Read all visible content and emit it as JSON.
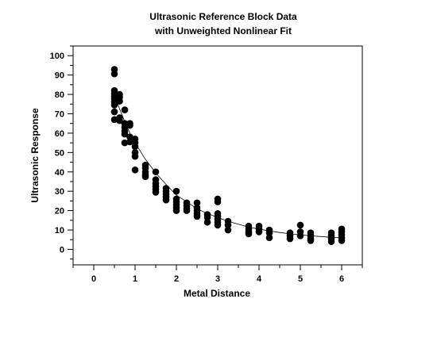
{
  "chart_data": {
    "type": "scatter",
    "title": "Ultrasonic Reference Block Data",
    "subtitle": "with Unweighted Nonlinear Fit",
    "xlabel": "Metal Distance",
    "ylabel": "Ultrasonic Response",
    "xlim": [
      -0.5,
      6.5
    ],
    "ylim": [
      -8,
      105
    ],
    "x_ticks": [
      0,
      1,
      2,
      3,
      4,
      5,
      6
    ],
    "y_ticks": [
      0,
      10,
      20,
      30,
      40,
      50,
      60,
      70,
      80,
      90,
      100
    ],
    "grid": false,
    "legend": "none",
    "marker_color": "#000000",
    "points": [
      {
        "x": 0.5,
        "y": 92.9
      },
      {
        "x": 0.5,
        "y": 90.6
      },
      {
        "x": 0.5,
        "y": 82.0
      },
      {
        "x": 0.5,
        "y": 80.5
      },
      {
        "x": 0.5,
        "y": 79.0
      },
      {
        "x": 0.5,
        "y": 77.6
      },
      {
        "x": 0.5,
        "y": 76.0
      },
      {
        "x": 0.5,
        "y": 74.5
      },
      {
        "x": 0.5,
        "y": 71.0
      },
      {
        "x": 0.5,
        "y": 67.0
      },
      {
        "x": 0.625,
        "y": 80.0
      },
      {
        "x": 0.625,
        "y": 78.5
      },
      {
        "x": 0.625,
        "y": 76.5
      },
      {
        "x": 0.625,
        "y": 68.0
      },
      {
        "x": 0.625,
        "y": 66.5
      },
      {
        "x": 0.75,
        "y": 72.0
      },
      {
        "x": 0.75,
        "y": 65.0
      },
      {
        "x": 0.75,
        "y": 63.0
      },
      {
        "x": 0.75,
        "y": 61.0
      },
      {
        "x": 0.75,
        "y": 59.5
      },
      {
        "x": 0.75,
        "y": 55.0
      },
      {
        "x": 0.875,
        "y": 65.0
      },
      {
        "x": 0.875,
        "y": 64.0
      },
      {
        "x": 0.875,
        "y": 58.0
      },
      {
        "x": 0.875,
        "y": 55.5
      },
      {
        "x": 1.0,
        "y": 57.0
      },
      {
        "x": 1.0,
        "y": 55.0
      },
      {
        "x": 1.0,
        "y": 53.0
      },
      {
        "x": 1.0,
        "y": 50.0
      },
      {
        "x": 1.0,
        "y": 48.0
      },
      {
        "x": 1.0,
        "y": 41.0
      },
      {
        "x": 1.25,
        "y": 43.5
      },
      {
        "x": 1.25,
        "y": 42.0
      },
      {
        "x": 1.25,
        "y": 40.0
      },
      {
        "x": 1.25,
        "y": 38.5
      },
      {
        "x": 1.25,
        "y": 37.5
      },
      {
        "x": 1.5,
        "y": 40.0
      },
      {
        "x": 1.5,
        "y": 36.0
      },
      {
        "x": 1.5,
        "y": 34.0
      },
      {
        "x": 1.5,
        "y": 32.5
      },
      {
        "x": 1.5,
        "y": 31.0
      },
      {
        "x": 1.5,
        "y": 29.5
      },
      {
        "x": 1.75,
        "y": 31.5
      },
      {
        "x": 1.75,
        "y": 30.0
      },
      {
        "x": 1.75,
        "y": 28.5
      },
      {
        "x": 1.75,
        "y": 27.0
      },
      {
        "x": 1.75,
        "y": 25.5
      },
      {
        "x": 2.0,
        "y": 30.0
      },
      {
        "x": 2.0,
        "y": 26.0
      },
      {
        "x": 2.0,
        "y": 24.5
      },
      {
        "x": 2.0,
        "y": 23.0
      },
      {
        "x": 2.0,
        "y": 21.5
      },
      {
        "x": 2.0,
        "y": 20.0
      },
      {
        "x": 2.25,
        "y": 24.0
      },
      {
        "x": 2.25,
        "y": 22.5
      },
      {
        "x": 2.25,
        "y": 21.0
      },
      {
        "x": 2.25,
        "y": 20.0
      },
      {
        "x": 2.5,
        "y": 24.0
      },
      {
        "x": 2.5,
        "y": 21.5
      },
      {
        "x": 2.5,
        "y": 20.0
      },
      {
        "x": 2.5,
        "y": 18.5
      },
      {
        "x": 2.5,
        "y": 17.0
      },
      {
        "x": 2.75,
        "y": 18.0
      },
      {
        "x": 2.75,
        "y": 16.5
      },
      {
        "x": 2.75,
        "y": 14.0
      },
      {
        "x": 3.0,
        "y": 26.0
      },
      {
        "x": 3.0,
        "y": 24.5
      },
      {
        "x": 3.0,
        "y": 18.5
      },
      {
        "x": 3.0,
        "y": 17.0
      },
      {
        "x": 3.0,
        "y": 15.5
      },
      {
        "x": 3.0,
        "y": 14.0
      },
      {
        "x": 3.0,
        "y": 12.5
      },
      {
        "x": 3.25,
        "y": 14.5
      },
      {
        "x": 3.25,
        "y": 12.5
      },
      {
        "x": 3.25,
        "y": 10.0
      },
      {
        "x": 3.75,
        "y": 12.0
      },
      {
        "x": 3.75,
        "y": 10.5
      },
      {
        "x": 3.75,
        "y": 9.0
      },
      {
        "x": 3.75,
        "y": 8.0
      },
      {
        "x": 4.0,
        "y": 12.0
      },
      {
        "x": 4.0,
        "y": 10.5
      },
      {
        "x": 4.0,
        "y": 9.0
      },
      {
        "x": 4.25,
        "y": 10.0
      },
      {
        "x": 4.25,
        "y": 8.5
      },
      {
        "x": 4.25,
        "y": 6.0
      },
      {
        "x": 4.75,
        "y": 8.5
      },
      {
        "x": 4.75,
        "y": 7.0
      },
      {
        "x": 4.75,
        "y": 5.5
      },
      {
        "x": 5.0,
        "y": 12.5
      },
      {
        "x": 5.0,
        "y": 9.0
      },
      {
        "x": 5.0,
        "y": 7.0
      },
      {
        "x": 5.25,
        "y": 8.5
      },
      {
        "x": 5.25,
        "y": 7.0
      },
      {
        "x": 5.25,
        "y": 5.5
      },
      {
        "x": 5.25,
        "y": 4.5
      },
      {
        "x": 5.75,
        "y": 8.5
      },
      {
        "x": 5.75,
        "y": 7.0
      },
      {
        "x": 5.75,
        "y": 5.5
      },
      {
        "x": 5.75,
        "y": 4.0
      },
      {
        "x": 6.0,
        "y": 10.5
      },
      {
        "x": 6.0,
        "y": 9.0
      },
      {
        "x": 6.0,
        "y": 7.5
      },
      {
        "x": 6.0,
        "y": 6.0
      },
      {
        "x": 6.0,
        "y": 4.5
      }
    ],
    "fit_line": [
      {
        "x": 0.5,
        "y": 80.0
      },
      {
        "x": 0.625,
        "y": 72.5
      },
      {
        "x": 0.75,
        "y": 66.0
      },
      {
        "x": 0.875,
        "y": 60.0
      },
      {
        "x": 1.0,
        "y": 55.0
      },
      {
        "x": 1.25,
        "y": 46.5
      },
      {
        "x": 1.5,
        "y": 39.5
      },
      {
        "x": 1.75,
        "y": 33.5
      },
      {
        "x": 2.0,
        "y": 28.0
      },
      {
        "x": 2.25,
        "y": 24.5
      },
      {
        "x": 2.5,
        "y": 21.0
      },
      {
        "x": 2.75,
        "y": 18.5
      },
      {
        "x": 3.0,
        "y": 16.5
      },
      {
        "x": 3.25,
        "y": 14.5
      },
      {
        "x": 3.5,
        "y": 13.0
      },
      {
        "x": 3.75,
        "y": 11.5
      },
      {
        "x": 4.0,
        "y": 10.5
      },
      {
        "x": 4.25,
        "y": 9.5
      },
      {
        "x": 4.5,
        "y": 8.7
      },
      {
        "x": 4.75,
        "y": 8.0
      },
      {
        "x": 5.0,
        "y": 7.5
      },
      {
        "x": 5.25,
        "y": 7.0
      },
      {
        "x": 5.5,
        "y": 6.6
      },
      {
        "x": 5.75,
        "y": 6.2
      },
      {
        "x": 6.0,
        "y": 5.9
      }
    ]
  }
}
